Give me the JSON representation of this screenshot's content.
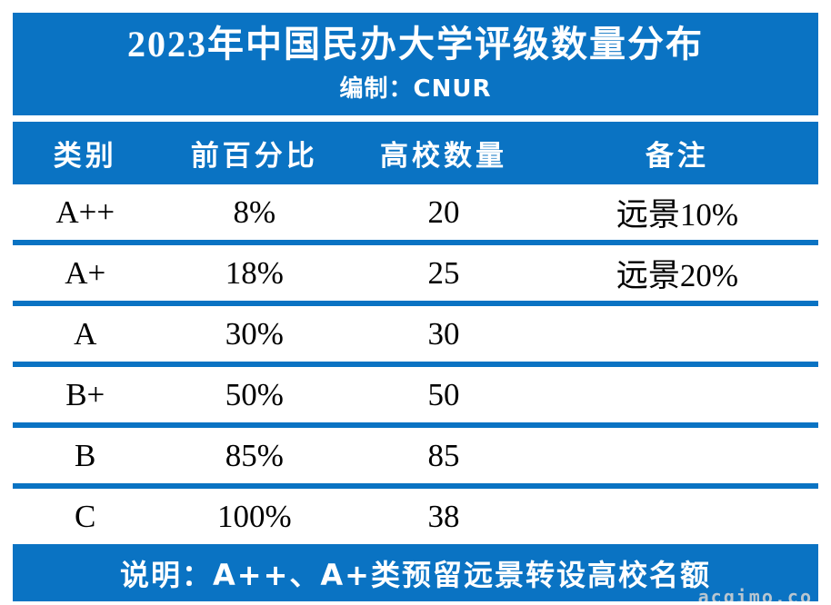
{
  "header": {
    "title": "2023年中国民办大学评级数量分布",
    "subtitle": "编制：CNUR"
  },
  "table": {
    "columns": [
      "类别",
      "前百分比",
      "高校数量",
      "备注"
    ],
    "rows": [
      [
        "A++",
        "8%",
        "20",
        "远景10%"
      ],
      [
        "A+",
        "18%",
        "25",
        "远景20%"
      ],
      [
        "A",
        "30%",
        "30",
        ""
      ],
      [
        "B+",
        "50%",
        "50",
        ""
      ],
      [
        "B",
        "85%",
        "85",
        ""
      ],
      [
        "C",
        "100%",
        "38",
        ""
      ]
    ]
  },
  "footer": {
    "note": "说明：A++、A+类预留远景转设高校名额",
    "watermark": "acgimo.co"
  },
  "colors": {
    "band_blue": "#0a73c3",
    "text_white": "#ffffff",
    "text_black": "#000000",
    "watermark_gray": "#b8c6d0"
  },
  "chart_data": {
    "type": "table",
    "title": "2023年中国民办大学评级数量分布",
    "subtitle": "编制：CNUR",
    "columns": [
      "类别",
      "前百分比",
      "高校数量",
      "备注"
    ],
    "categories": [
      "A++",
      "A+",
      "A",
      "B+",
      "B",
      "C"
    ],
    "series": [
      {
        "name": "前百分比",
        "values": [
          "8%",
          "18%",
          "30%",
          "50%",
          "85%",
          "100%"
        ]
      },
      {
        "name": "高校数量",
        "values": [
          20,
          25,
          30,
          50,
          85,
          38
        ]
      },
      {
        "name": "备注",
        "values": [
          "远景10%",
          "远景20%",
          "",
          "",
          "",
          ""
        ]
      }
    ],
    "footnote": "说明：A++、A+类预留远景转设高校名额"
  }
}
